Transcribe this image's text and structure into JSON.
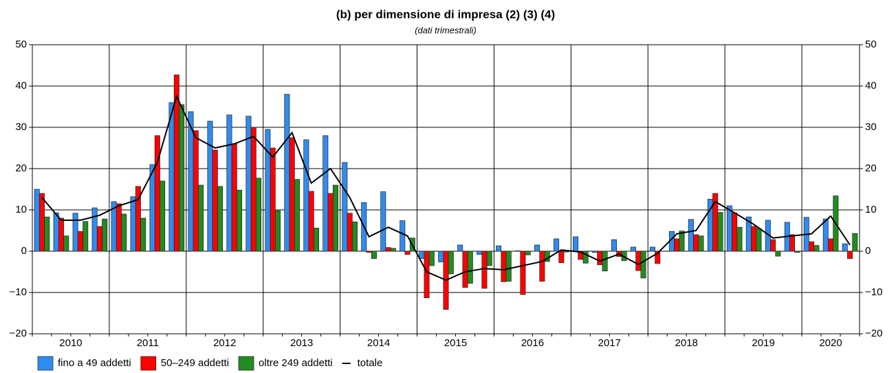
{
  "chart_data": {
    "type": "bar",
    "title": "(b) per dimensione di impresa (2) (3) (4)",
    "subtitle": "(dati trimestrali)",
    "categories": [
      "2010",
      null,
      null,
      null,
      "2011",
      null,
      null,
      null,
      "2012",
      null,
      null,
      null,
      "2013",
      null,
      null,
      null,
      "2014",
      null,
      null,
      null,
      "2015",
      null,
      null,
      null,
      "2016",
      null,
      null,
      null,
      "2017",
      null,
      null,
      null,
      "2018",
      null,
      null,
      null,
      "2019",
      null,
      null,
      null,
      "2020",
      null,
      null
    ],
    "series": [
      {
        "name": "fino a 49 addetti",
        "color": "#2f8cf0",
        "mark": "bar",
        "values": [
          15,
          9.3,
          9.2,
          10.5,
          12,
          13.2,
          21,
          36,
          33.8,
          31.5,
          33,
          32.7,
          29.5,
          38,
          27,
          28,
          21.5,
          11.8,
          14.4,
          7.4,
          -1.8,
          -2.6,
          1.5,
          -0.8,
          1.3,
          0.1,
          1.5,
          3,
          3.5,
          -0.3,
          2.8,
          1,
          1,
          4.8,
          7.7,
          12.6,
          11,
          8.3,
          7.5,
          7,
          8.2,
          7.8,
          1.8
        ]
      },
      {
        "name": "50–249 addetti",
        "color": "#ff0000",
        "mark": "bar",
        "values": [
          14,
          8,
          4.8,
          6,
          11.5,
          15.7,
          28,
          42.7,
          29.2,
          24.5,
          26,
          30,
          25,
          27.5,
          14.5,
          14,
          9.2,
          -0.3,
          0.9,
          -0.8,
          -11.3,
          -14.1,
          -8.8,
          -9,
          -7.4,
          -10.5,
          -7.3,
          -2.8,
          -2,
          -3.3,
          -1.3,
          -4.7,
          -3,
          3,
          4,
          14,
          9.3,
          6,
          2.8,
          4,
          2.3,
          3,
          -1.8
        ]
      },
      {
        "name": "oltre 249 addetti",
        "color": "#228b22",
        "mark": "bar",
        "values": [
          8.3,
          3.7,
          7.2,
          7.8,
          9,
          8,
          17,
          35.5,
          16,
          15.7,
          14.8,
          17.7,
          9.8,
          17.4,
          5.6,
          16,
          7.1,
          -1.8,
          0.7,
          3.2,
          -3.5,
          -5.5,
          -7.8,
          -3.5,
          -7.3,
          -0.9,
          -2.5,
          -0.2,
          -2.9,
          -4.8,
          -2.3,
          -6.5,
          0,
          4.9,
          3.7,
          9.4,
          5.8,
          5.5,
          -1.2,
          -0.3,
          1.4,
          13.4,
          4.3
        ]
      },
      {
        "name": "totale",
        "color": "#000000",
        "mark": "line",
        "values": [
          13,
          7.5,
          7.5,
          8.7,
          11,
          12.5,
          21.5,
          37.5,
          27.5,
          25,
          26,
          27.8,
          22.8,
          28.7,
          16.5,
          20,
          13,
          3.5,
          5.8,
          3.7,
          -5,
          -7,
          -5,
          -4.2,
          -4.5,
          -3.5,
          -2.5,
          0.3,
          -0.2,
          -2.4,
          -0.7,
          -3.2,
          -0.5,
          4.2,
          5,
          12,
          9.3,
          6.5,
          3.2,
          3.7,
          4.2,
          8.5,
          1.5
        ]
      }
    ],
    "ylim": [
      -20,
      50
    ],
    "yticks": [
      {
        "value": -20,
        "label": "−20"
      },
      {
        "value": -10,
        "label": "−10"
      },
      0,
      10,
      20,
      30,
      40,
      50
    ],
    "y2lim": [
      -20,
      50
    ],
    "y2ticks": [
      {
        "value": -20,
        "label": "−20"
      },
      {
        "value": -10,
        "label": "−10"
      },
      0,
      10,
      20,
      30,
      40,
      50
    ],
    "grid": true,
    "legend": "bottom-left"
  }
}
